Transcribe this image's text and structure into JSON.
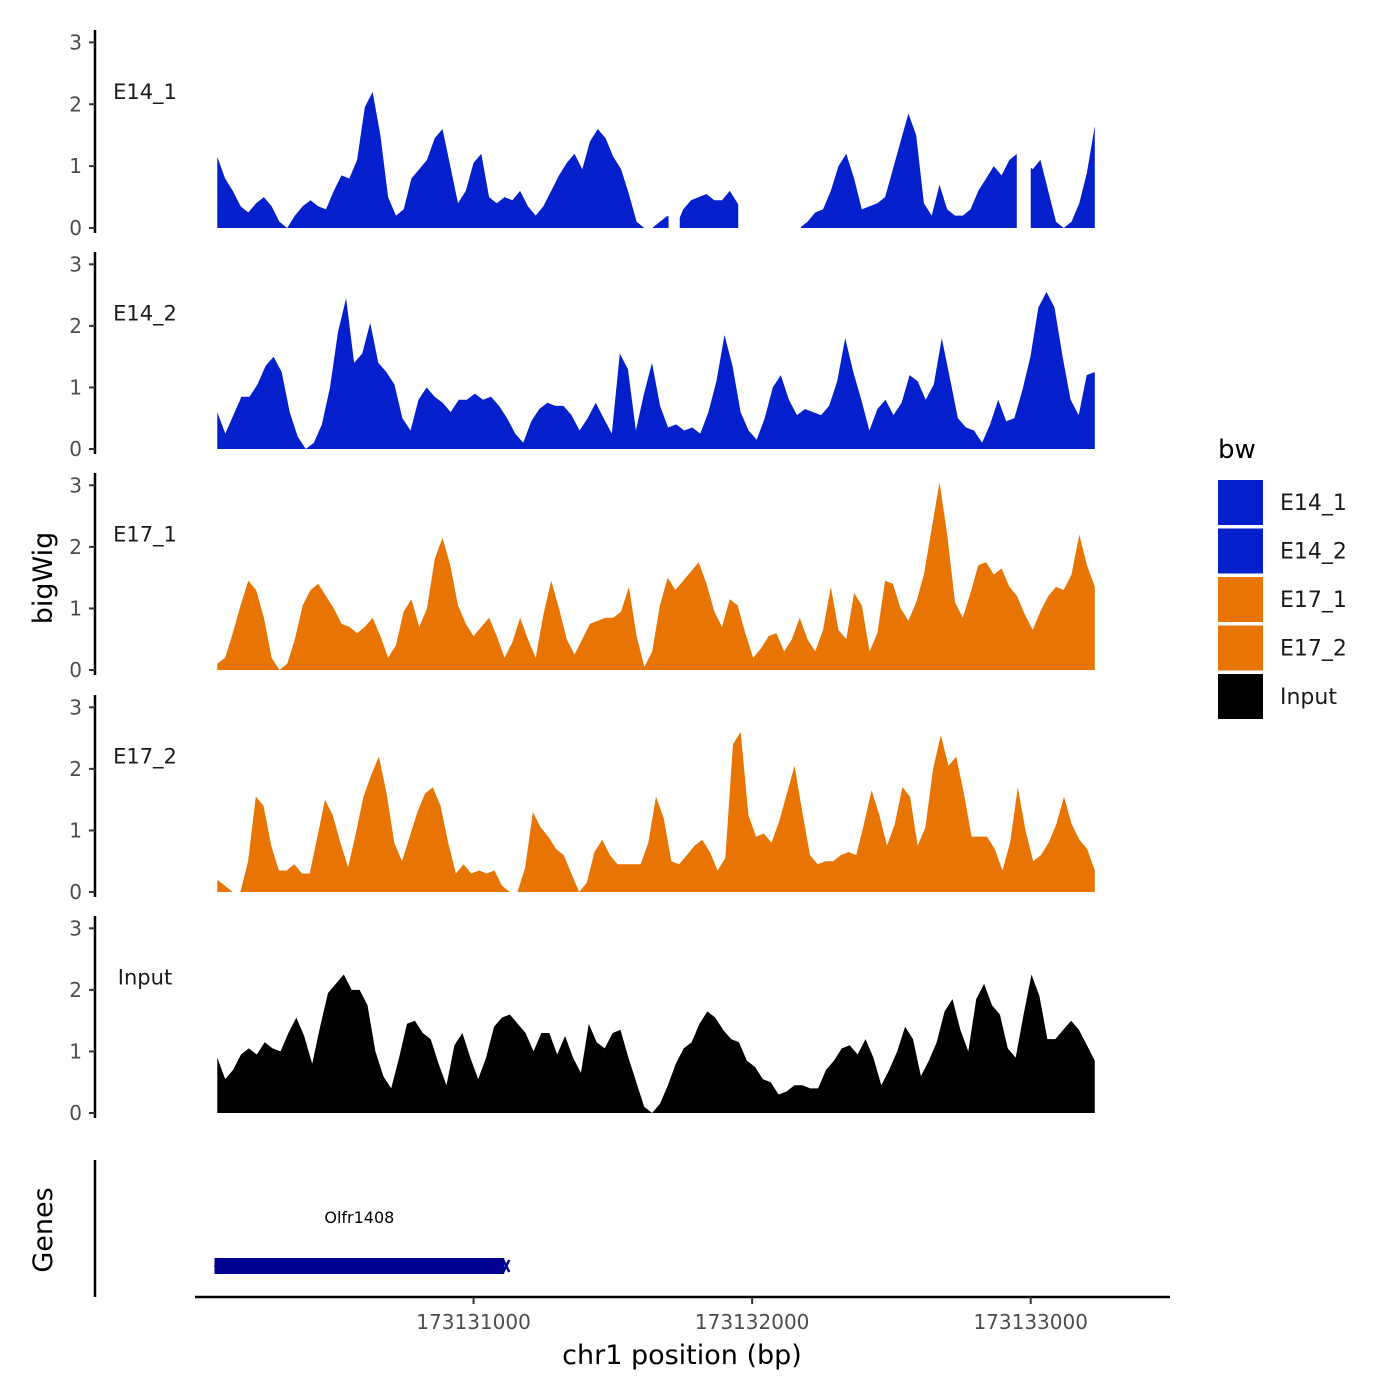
{
  "chart_data": {
    "type": "area",
    "y_axis_title": "bigWig",
    "x_axis_title": "chr1 position (bp)",
    "gene_panel_title": "Genes",
    "x_range": [
      173130000,
      173133500
    ],
    "data_x_range": [
      173130080,
      173133230
    ],
    "y_range": [
      0,
      3.2
    ],
    "y_ticks": [
      0,
      1,
      2,
      3
    ],
    "x_ticks": [
      173131000,
      173132000,
      173133000
    ],
    "x_tick_labels": [
      "173131000",
      "173132000",
      "173133000"
    ],
    "legend": {
      "title": "bw",
      "entries": [
        {
          "label": "E14_1",
          "color": "#0420CC"
        },
        {
          "label": "E14_2",
          "color": "#0420CC"
        },
        {
          "label": "E17_1",
          "color": "#E87404"
        },
        {
          "label": "E17_2",
          "color": "#E87404"
        },
        {
          "label": "Input",
          "color": "#000000"
        }
      ]
    },
    "series": [
      {
        "name": "E14_1",
        "color": "#0420CC",
        "values": [
          1.15,
          0.8,
          0.6,
          0.35,
          0.25,
          0.4,
          0.5,
          0.35,
          0.1,
          0,
          0.2,
          0.35,
          0.45,
          0.35,
          0.3,
          0.6,
          0.85,
          0.8,
          1.1,
          1.95,
          2.2,
          1.5,
          0.5,
          0.2,
          0.3,
          0.8,
          0.95,
          1.1,
          1.45,
          1.6,
          1.0,
          0.4,
          0.6,
          1.05,
          1.2,
          0.5,
          0.4,
          0.5,
          0.45,
          0.6,
          0.35,
          0.2,
          0.35,
          0.6,
          0.85,
          1.05,
          1.2,
          0.95,
          1.4,
          1.6,
          1.45,
          1.15,
          0.95,
          0.55,
          0.1,
          0,
          0,
          0.1,
          0.2,
          0,
          0.3,
          0.45,
          0.5,
          0.55,
          0.45,
          0.45,
          0.6,
          0.4,
          0.2,
          0,
          0,
          0,
          0,
          0,
          0,
          0,
          0.1,
          0.25,
          0.3,
          0.6,
          1.0,
          1.2,
          0.8,
          0.3,
          0.35,
          0.4,
          0.5,
          0.95,
          1.4,
          1.85,
          1.5,
          0.4,
          0.2,
          0.7,
          0.3,
          0.2,
          0.2,
          0.3,
          0.6,
          0.8,
          1.0,
          0.85,
          1.1,
          1.2,
          1.05,
          0.95,
          1.1,
          0.6,
          0.1,
          0,
          0.1,
          0.4,
          0.9,
          1.65
        ],
        "gaps": [
          [
            173131700,
            173131740
          ],
          [
            173131950,
            173132175
          ],
          [
            173132950,
            173133000
          ]
        ]
      },
      {
        "name": "E14_2",
        "color": "#0420CC",
        "values": [
          0.6,
          0.25,
          0.55,
          0.85,
          0.85,
          1.05,
          1.35,
          1.5,
          1.25,
          0.6,
          0.2,
          0,
          0.1,
          0.4,
          1.0,
          1.9,
          2.45,
          1.4,
          1.55,
          2.05,
          1.4,
          1.25,
          1.05,
          0.5,
          0.3,
          0.8,
          1.0,
          0.85,
          0.75,
          0.6,
          0.8,
          0.8,
          0.9,
          0.8,
          0.85,
          0.7,
          0.5,
          0.25,
          0.1,
          0.45,
          0.65,
          0.75,
          0.7,
          0.7,
          0.55,
          0.3,
          0.5,
          0.75,
          0.5,
          0.25,
          1.55,
          1.3,
          0.3,
          0.9,
          1.4,
          0.7,
          0.35,
          0.4,
          0.3,
          0.35,
          0.25,
          0.6,
          1.1,
          1.85,
          1.35,
          0.6,
          0.3,
          0.15,
          0.5,
          1.0,
          1.2,
          0.8,
          0.55,
          0.65,
          0.6,
          0.55,
          0.7,
          1.1,
          1.8,
          1.25,
          0.8,
          0.3,
          0.65,
          0.8,
          0.55,
          0.75,
          1.2,
          1.1,
          0.8,
          1.05,
          1.8,
          1.15,
          0.5,
          0.35,
          0.3,
          0.1,
          0.4,
          0.8,
          0.45,
          0.5,
          0.95,
          1.5,
          2.3,
          2.55,
          2.3,
          1.5,
          0.8,
          0.55,
          1.2,
          1.25
        ],
        "gaps": []
      },
      {
        "name": "E17_1",
        "color": "#E87404",
        "values": [
          0.1,
          0.2,
          0.6,
          1.05,
          1.45,
          1.3,
          0.85,
          0.2,
          0,
          0.1,
          0.5,
          1.05,
          1.3,
          1.4,
          1.2,
          1.0,
          0.75,
          0.7,
          0.6,
          0.7,
          0.85,
          0.55,
          0.2,
          0.4,
          0.95,
          1.15,
          0.7,
          1.0,
          1.8,
          2.15,
          1.7,
          1.05,
          0.75,
          0.55,
          0.7,
          0.85,
          0.55,
          0.2,
          0.45,
          0.85,
          0.5,
          0.2,
          0.9,
          1.45,
          1.0,
          0.5,
          0.25,
          0.5,
          0.75,
          0.8,
          0.85,
          0.85,
          0.95,
          1.35,
          0.55,
          0.05,
          0.3,
          1.05,
          1.5,
          1.3,
          1.45,
          1.6,
          1.75,
          1.4,
          0.95,
          0.7,
          1.15,
          1.05,
          0.6,
          0.2,
          0.35,
          0.55,
          0.6,
          0.3,
          0.5,
          0.85,
          0.5,
          0.3,
          0.65,
          1.35,
          0.65,
          0.5,
          1.25,
          1.05,
          0.3,
          0.6,
          1.45,
          1.4,
          1.0,
          0.8,
          1.1,
          1.55,
          2.3,
          3.05,
          2.2,
          1.1,
          0.85,
          1.25,
          1.7,
          1.75,
          1.55,
          1.65,
          1.35,
          1.2,
          0.9,
          0.65,
          0.95,
          1.2,
          1.35,
          1.3,
          1.55,
          2.2,
          1.7,
          1.35
        ],
        "gaps": []
      },
      {
        "name": "E17_2",
        "color": "#E87404",
        "values": [
          0.2,
          0.1,
          0,
          0,
          0.5,
          1.55,
          1.4,
          0.75,
          0.35,
          0.35,
          0.45,
          0.3,
          0.3,
          0.9,
          1.5,
          1.25,
          0.8,
          0.4,
          0.95,
          1.55,
          1.9,
          2.2,
          1.6,
          0.8,
          0.5,
          0.9,
          1.3,
          1.6,
          1.7,
          1.4,
          0.8,
          0.3,
          0.45,
          0.3,
          0.35,
          0.3,
          0.35,
          0.1,
          0,
          0,
          0.4,
          1.3,
          1.05,
          0.9,
          0.7,
          0.6,
          0.3,
          0,
          0.15,
          0.65,
          0.85,
          0.6,
          0.45,
          0.45,
          0.45,
          0.45,
          0.8,
          1.55,
          1.2,
          0.5,
          0.45,
          0.6,
          0.75,
          0.85,
          0.65,
          0.35,
          0.55,
          2.4,
          2.6,
          1.25,
          0.9,
          0.95,
          0.8,
          1.15,
          1.6,
          2.05,
          1.3,
          0.6,
          0.45,
          0.5,
          0.5,
          0.6,
          0.65,
          0.6,
          1.1,
          1.65,
          1.25,
          0.75,
          1.1,
          1.7,
          1.55,
          0.75,
          1.05,
          2.0,
          2.55,
          2.05,
          2.2,
          1.6,
          0.9,
          0.9,
          0.9,
          0.7,
          0.35,
          0.8,
          1.7,
          1.0,
          0.5,
          0.6,
          0.8,
          1.1,
          1.55,
          1.1,
          0.85,
          0.7,
          0.35
        ],
        "gaps": []
      },
      {
        "name": "Input",
        "color": "#000000",
        "values": [
          0.9,
          0.55,
          0.7,
          0.95,
          1.05,
          0.95,
          1.15,
          1.05,
          1.0,
          1.3,
          1.55,
          1.25,
          0.8,
          1.4,
          1.95,
          2.1,
          2.25,
          2.0,
          2.0,
          1.75,
          1.0,
          0.6,
          0.4,
          0.9,
          1.45,
          1.5,
          1.3,
          1.2,
          0.8,
          0.45,
          1.1,
          1.3,
          0.9,
          0.55,
          0.9,
          1.4,
          1.55,
          1.6,
          1.45,
          1.3,
          1.0,
          1.3,
          1.3,
          0.95,
          1.25,
          0.9,
          0.65,
          1.45,
          1.15,
          1.05,
          1.3,
          1.35,
          0.9,
          0.5,
          0.1,
          0,
          0.15,
          0.45,
          0.8,
          1.05,
          1.15,
          1.45,
          1.65,
          1.55,
          1.35,
          1.2,
          1.15,
          0.85,
          0.75,
          0.55,
          0.5,
          0.3,
          0.35,
          0.45,
          0.45,
          0.4,
          0.4,
          0.7,
          0.85,
          1.05,
          1.1,
          0.95,
          1.2,
          0.9,
          0.45,
          0.7,
          1.0,
          1.4,
          1.2,
          0.6,
          0.85,
          1.15,
          1.65,
          1.85,
          1.35,
          1.0,
          1.85,
          2.1,
          1.75,
          1.6,
          1.05,
          0.9,
          1.6,
          2.25,
          1.9,
          1.2,
          1.2,
          1.35,
          1.5,
          1.35,
          1.1,
          0.85
        ],
        "gaps": []
      }
    ],
    "genes": [
      {
        "name": "Olfr1408",
        "start": 173130070,
        "end": 173131110,
        "strand": "-",
        "color": "#000091"
      }
    ]
  }
}
